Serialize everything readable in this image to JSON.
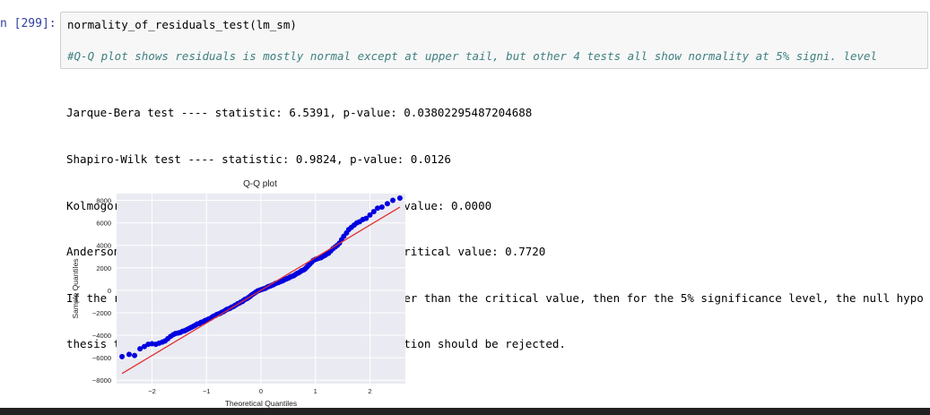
{
  "cell": {
    "prompt": "n [299]:",
    "code": "normality_of_residuals_test(lm_sm)",
    "comment": "#Q-Q plot shows residuals is mostly normal except at upper tail, but other 4 tests all show normality at 5% signi. level"
  },
  "output": {
    "lines": [
      "Jarque-Bera test ---- statistic: 6.5391, p-value: 0.03802295487204688",
      "Shapiro-Wilk test ---- statistic: 0.9824, p-value: 0.0126",
      "Kolmogorov-Smirnov test ---- statistic: 0.5149, p-value: 0.0000",
      "Anderson-Darling test ---- statistic: 0.6878, 5% critical value: 0.7720",
      "If the returned Anderson Draling statistic is larger than the critical value, then for the 5% significance level, the null hypo",
      "thesis that the data come from the Normal distribution should be rejected."
    ]
  },
  "chart_data": {
    "type": "scatter",
    "title": "Q-Q plot",
    "xlabel": "Theoretical Quantiles",
    "ylabel": "Sample Quantiles",
    "xlim": [
      -2.65,
      2.65
    ],
    "ylim": [
      -8300,
      8600
    ],
    "x_ticks": [
      -2,
      -1,
      0,
      1,
      2
    ],
    "y_ticks": [
      8000,
      6000,
      4000,
      2000,
      0,
      -2000,
      -4000,
      -6000,
      -8000
    ],
    "grid": true,
    "point_color": "#0000e0",
    "line_color": "#e03030",
    "reference_line": {
      "x": [
        -2.55,
        2.55
      ],
      "y": [
        -7400,
        7400
      ]
    },
    "points": [
      [
        -2.55,
        -5900
      ],
      [
        -2.42,
        -5700
      ],
      [
        -2.32,
        -5800
      ],
      [
        -2.22,
        -5200
      ],
      [
        -2.14,
        -5000
      ],
      [
        -2.07,
        -4800
      ],
      [
        -2.0,
        -4750
      ],
      [
        -1.93,
        -4800
      ],
      [
        -1.87,
        -4700
      ],
      [
        -1.81,
        -4600
      ],
      [
        -1.76,
        -4500
      ],
      [
        -1.71,
        -4300
      ],
      [
        -1.66,
        -4100
      ],
      [
        -1.61,
        -3950
      ],
      [
        -1.57,
        -3850
      ],
      [
        -1.52,
        -3800
      ],
      [
        -1.48,
        -3750
      ],
      [
        -1.44,
        -3650
      ],
      [
        -1.4,
        -3600
      ],
      [
        -1.36,
        -3500
      ],
      [
        -1.32,
        -3400
      ],
      [
        -1.28,
        -3300
      ],
      [
        -1.24,
        -3200
      ],
      [
        -1.2,
        -3100
      ],
      [
        -1.17,
        -3000
      ],
      [
        -1.13,
        -2950
      ],
      [
        -1.1,
        -2850
      ],
      [
        -1.06,
        -2800
      ],
      [
        -1.03,
        -2700
      ],
      [
        -1.0,
        -2650
      ],
      [
        -0.96,
        -2550
      ],
      [
        -0.93,
        -2500
      ],
      [
        -0.9,
        -2400
      ],
      [
        -0.87,
        -2300
      ],
      [
        -0.84,
        -2250
      ],
      [
        -0.81,
        -2150
      ],
      [
        -0.78,
        -2100
      ],
      [
        -0.75,
        -2050
      ],
      [
        -0.72,
        -1950
      ],
      [
        -0.69,
        -1900
      ],
      [
        -0.66,
        -1800
      ],
      [
        -0.63,
        -1700
      ],
      [
        -0.6,
        -1650
      ],
      [
        -0.57,
        -1600
      ],
      [
        -0.54,
        -1500
      ],
      [
        -0.51,
        -1450
      ],
      [
        -0.48,
        -1350
      ],
      [
        -0.46,
        -1300
      ],
      [
        -0.43,
        -1200
      ],
      [
        -0.4,
        -1150
      ],
      [
        -0.37,
        -1050
      ],
      [
        -0.34,
        -1000
      ],
      [
        -0.32,
        -900
      ],
      [
        -0.29,
        -800
      ],
      [
        -0.26,
        -750
      ],
      [
        -0.23,
        -650
      ],
      [
        -0.2,
        -550
      ],
      [
        -0.18,
        -450
      ],
      [
        -0.15,
        -350
      ],
      [
        -0.12,
        -250
      ],
      [
        -0.09,
        -150
      ],
      [
        -0.06,
        -50
      ],
      [
        -0.03,
        0
      ],
      [
        0.0,
        50
      ],
      [
        0.03,
        100
      ],
      [
        0.06,
        150
      ],
      [
        0.09,
        200
      ],
      [
        0.12,
        300
      ],
      [
        0.15,
        350
      ],
      [
        0.18,
        400
      ],
      [
        0.2,
        450
      ],
      [
        0.23,
        500
      ],
      [
        0.26,
        600
      ],
      [
        0.29,
        650
      ],
      [
        0.32,
        700
      ],
      [
        0.34,
        750
      ],
      [
        0.37,
        800
      ],
      [
        0.4,
        850
      ],
      [
        0.43,
        950
      ],
      [
        0.46,
        1000
      ],
      [
        0.48,
        1050
      ],
      [
        0.51,
        1100
      ],
      [
        0.54,
        1200
      ],
      [
        0.57,
        1250
      ],
      [
        0.6,
        1300
      ],
      [
        0.63,
        1400
      ],
      [
        0.66,
        1500
      ],
      [
        0.69,
        1550
      ],
      [
        0.72,
        1650
      ],
      [
        0.75,
        1750
      ],
      [
        0.78,
        1800
      ],
      [
        0.81,
        1900
      ],
      [
        0.84,
        2050
      ],
      [
        0.87,
        2200
      ],
      [
        0.9,
        2350
      ],
      [
        0.93,
        2500
      ],
      [
        0.96,
        2650
      ],
      [
        1.0,
        2750
      ],
      [
        1.03,
        2800
      ],
      [
        1.06,
        2850
      ],
      [
        1.1,
        2900
      ],
      [
        1.13,
        3000
      ],
      [
        1.17,
        3100
      ],
      [
        1.2,
        3200
      ],
      [
        1.24,
        3300
      ],
      [
        1.28,
        3500
      ],
      [
        1.32,
        3700
      ],
      [
        1.36,
        3850
      ],
      [
        1.4,
        4000
      ],
      [
        1.44,
        4200
      ],
      [
        1.48,
        4500
      ],
      [
        1.52,
        4800
      ],
      [
        1.57,
        5100
      ],
      [
        1.61,
        5400
      ],
      [
        1.66,
        5600
      ],
      [
        1.71,
        5800
      ],
      [
        1.76,
        6000
      ],
      [
        1.81,
        6100
      ],
      [
        1.87,
        6300
      ],
      [
        1.93,
        6400
      ],
      [
        2.0,
        6700
      ],
      [
        2.07,
        7000
      ],
      [
        2.14,
        7300
      ],
      [
        2.22,
        7400
      ],
      [
        2.32,
        7700
      ],
      [
        2.42,
        8000
      ],
      [
        2.55,
        8200
      ]
    ]
  }
}
